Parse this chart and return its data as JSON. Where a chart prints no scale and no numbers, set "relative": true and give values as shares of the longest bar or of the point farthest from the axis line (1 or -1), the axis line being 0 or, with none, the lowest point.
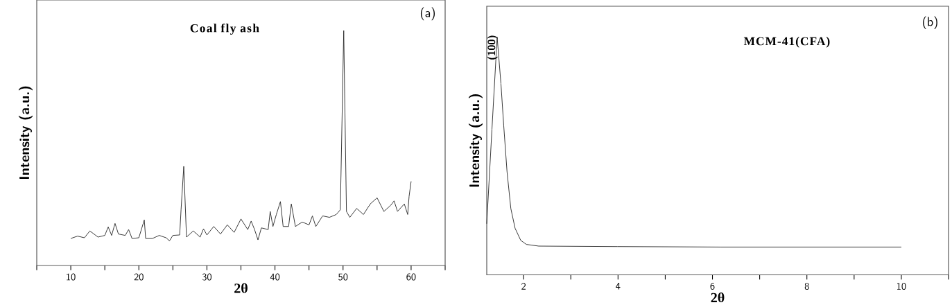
{
  "chart_data": [
    {
      "type": "line",
      "xlabel": "2θ",
      "ylabel": "Intensity (a.u.)",
      "relative": true,
      "color": "#2b2b2b",
      "annotations": [
        "(a)",
        "Coal fly ash"
      ],
      "xlim": [
        5,
        65
      ],
      "xticks": [
        {
          "value": 5,
          "label": null
        },
        10,
        {
          "value": 15,
          "label": null
        },
        20,
        {
          "value": 25,
          "label": null
        },
        30,
        {
          "value": 35,
          "label": null
        },
        40,
        {
          "value": 45,
          "label": null
        },
        50,
        {
          "value": 55,
          "label": null
        },
        60,
        {
          "value": 65,
          "label": null
        }
      ],
      "x": [
        10,
        11,
        12,
        12.8,
        14,
        15,
        15.5,
        16,
        16.5,
        17,
        18,
        18.5,
        19,
        20,
        20.8,
        21,
        22,
        23,
        24,
        24.5,
        25,
        26,
        26.2,
        26.6,
        27,
        28,
        29,
        29.5,
        30,
        31,
        32,
        33,
        34,
        35,
        36,
        36.5,
        37,
        37.5,
        38,
        39,
        39.3,
        39.7,
        40.2,
        40.8,
        41.2,
        42,
        42.4,
        43,
        44,
        45,
        45.5,
        46,
        47,
        48,
        49,
        49.6,
        50.1,
        50.5,
        51,
        52,
        53,
        54,
        55,
        56,
        57,
        57.5,
        58,
        59,
        59.5,
        59.7,
        60
      ],
      "values": [
        0.115,
        0.125,
        0.118,
        0.147,
        0.121,
        0.128,
        0.164,
        0.128,
        0.179,
        0.134,
        0.128,
        0.153,
        0.115,
        0.118,
        0.194,
        0.115,
        0.115,
        0.128,
        0.118,
        0.105,
        0.128,
        0.13,
        0.237,
        0.422,
        0.121,
        0.147,
        0.121,
        0.156,
        0.13,
        0.166,
        0.134,
        0.173,
        0.141,
        0.198,
        0.153,
        0.189,
        0.153,
        0.109,
        0.16,
        0.153,
        0.23,
        0.166,
        0.217,
        0.272,
        0.166,
        0.166,
        0.262,
        0.166,
        0.185,
        0.173,
        0.211,
        0.166,
        0.211,
        0.205,
        0.217,
        0.237,
        1,
        0.23,
        0.205,
        0.243,
        0.217,
        0.262,
        0.288,
        0.23,
        0.256,
        0.275,
        0.23,
        0.262,
        0.217,
        0.294,
        0.358
      ]
    },
    {
      "type": "line",
      "xlabel": "2θ",
      "ylabel": "Intensity (a.u.)",
      "relative": true,
      "color": "#2b2b2b",
      "annotations": [
        "(b)",
        "MCM-41(CFA)",
        {
          "text": "(100)",
          "x": 1.44,
          "y": 1
        }
      ],
      "xlim": [
        1.22,
        11
      ],
      "xticks": [
        2,
        {
          "value": 3,
          "label": null
        },
        4,
        {
          "value": 5,
          "label": null
        },
        6,
        {
          "value": 7,
          "label": null
        },
        8,
        {
          "value": 9,
          "label": null
        },
        10,
        {
          "value": 11,
          "label": null
        }
      ],
      "x": [
        1.22,
        1.33,
        1.44,
        1.52,
        1.58,
        1.65,
        1.73,
        1.82,
        1.94,
        2.06,
        2.32,
        3.99,
        6.17,
        10
      ],
      "values": [
        0.215,
        0.613,
        1,
        0.805,
        0.626,
        0.433,
        0.279,
        0.196,
        0.145,
        0.128,
        0.121,
        0.119,
        0.117,
        0.117
      ]
    }
  ]
}
